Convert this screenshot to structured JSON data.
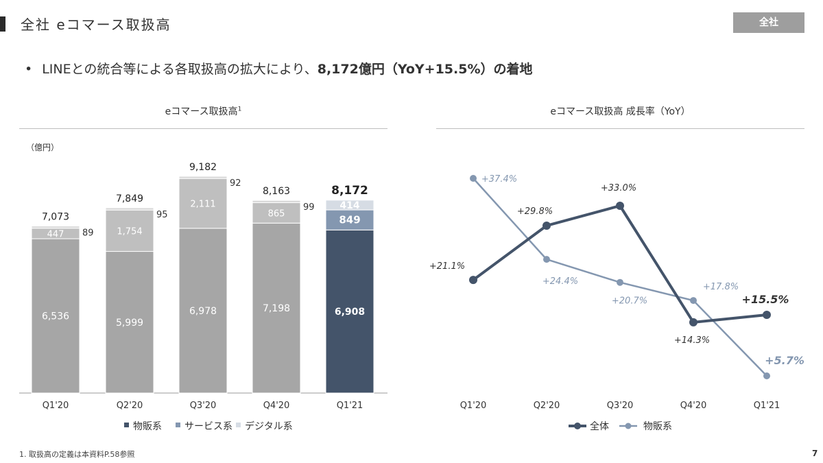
{
  "header": {
    "title": "全社 eコマース取扱高",
    "badge": "全社"
  },
  "summary": {
    "bullet": "•",
    "text_before": "LINEとの統合等による各取扱高の拡大により、",
    "text_bold": "8,172億円（YoY+15.5%）",
    "text_after": "の着地"
  },
  "footnote": "1. 取扱高の定義は本資料P.58参照",
  "page_number": "7",
  "colors": {
    "physical_q121": "#44546a",
    "service_q121": "#8497b0",
    "digital_q121": "#d6dce4",
    "physical_past": "#a6a6a6",
    "service_past": "#bfbfbf",
    "digital_past": "#d9d9d9",
    "line_total": "#44546a",
    "line_physical": "#8497b0"
  },
  "chart_data": [
    {
      "type": "bar",
      "stacked": true,
      "title": "eコマース取扱高",
      "title_sup": "1",
      "unit": "（億円）",
      "categories": [
        "Q1'20",
        "Q2'20",
        "Q3'20",
        "Q4'20",
        "Q1'21"
      ],
      "series": [
        {
          "name": "物販系",
          "values": [
            6536,
            5999,
            6978,
            7198,
            6908
          ],
          "labels": [
            "6,536",
            "5,999",
            "6,978",
            "7,198",
            "6,908"
          ]
        },
        {
          "name": "サービス系",
          "values": [
            447,
            1754,
            2111,
            865,
            849
          ],
          "labels": [
            "447",
            "1,754",
            "2,111",
            "865",
            "849"
          ]
        },
        {
          "name": "デジタル系",
          "values": [
            89,
            95,
            92,
            99,
            414
          ],
          "labels": [
            "89",
            "95",
            "92",
            "99",
            "414"
          ]
        }
      ],
      "totals": [
        "7,073",
        "7,849",
        "9,182",
        "8,163",
        "8,172"
      ],
      "ylim": [
        0,
        9500
      ],
      "legend_position": "bottom",
      "grid": false
    },
    {
      "type": "line",
      "title": "eコマース取扱高 成長率（YoY）",
      "categories": [
        "Q1'20",
        "Q2'20",
        "Q3'20",
        "Q4'20",
        "Q1'21"
      ],
      "series": [
        {
          "name": "全体",
          "values": [
            21.1,
            29.8,
            33.0,
            14.3,
            15.5
          ],
          "labels": [
            "+21.1%",
            "+29.8%",
            "+33.0%",
            "+14.3%",
            "+15.5%"
          ]
        },
        {
          "name": "物販系",
          "values": [
            37.4,
            24.4,
            20.7,
            17.8,
            5.7
          ],
          "labels": [
            "+37.4%",
            "+24.4%",
            "+20.7%",
            "+17.8%",
            "+5.7%"
          ]
        }
      ],
      "ylim": [
        0,
        42
      ],
      "legend_position": "bottom",
      "grid": false
    }
  ]
}
